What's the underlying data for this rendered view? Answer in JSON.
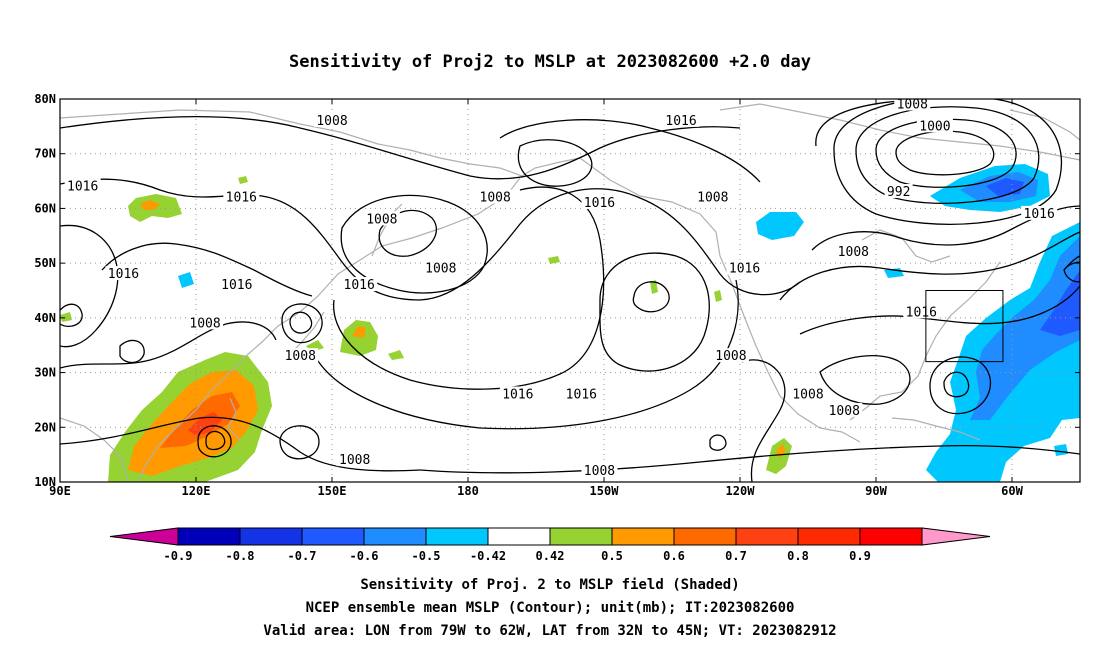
{
  "title": "Sensitivity of Proj2 to MSLP at 2023082600 +2.0 day",
  "map": {
    "lon_ticks": [
      "90E",
      "120E",
      "150E",
      "180",
      "150W",
      "120W",
      "90W",
      "60W"
    ],
    "lat_ticks": [
      "80N",
      "70N",
      "60N",
      "50N",
      "40N",
      "30N",
      "20N",
      "10N"
    ],
    "lon_range": [
      90,
      315
    ],
    "lat_range": [
      10,
      80
    ],
    "grid": "dotted",
    "valid_box": {
      "lon": [
        -79,
        -62
      ],
      "lat": [
        32,
        45
      ]
    }
  },
  "contour_labels": [
    {
      "text": "1008",
      "lon": 150,
      "lat": 76
    },
    {
      "text": "1016",
      "lon": 95,
      "lat": 64
    },
    {
      "text": "1016",
      "lon": 130,
      "lat": 62
    },
    {
      "text": "1016",
      "lon": 104,
      "lat": 48
    },
    {
      "text": "1016",
      "lon": 129,
      "lat": 46
    },
    {
      "text": "1008",
      "lon": 122,
      "lat": 39
    },
    {
      "text": "1008",
      "lon": 143,
      "lat": 33
    },
    {
      "text": "1008",
      "lon": 161,
      "lat": 58
    },
    {
      "text": "1008",
      "lon": 174,
      "lat": 49
    },
    {
      "text": "1016",
      "lon": 156,
      "lat": 46
    },
    {
      "text": "1008",
      "lon": 186,
      "lat": 62
    },
    {
      "text": "1016",
      "lon": 209,
      "lat": 61
    },
    {
      "text": "1016",
      "lon": 227,
      "lat": 76
    },
    {
      "text": "1008",
      "lon": 234,
      "lat": 62
    },
    {
      "text": "1008",
      "lon": 278,
      "lat": 79
    },
    {
      "text": "1000",
      "lon": 283,
      "lat": 75
    },
    {
      "text": "992",
      "lon": 275,
      "lat": 63
    },
    {
      "text": "1016",
      "lon": 306,
      "lat": 59
    },
    {
      "text": "1008",
      "lon": 265,
      "lat": 52
    },
    {
      "text": "1016",
      "lon": 241,
      "lat": 49
    },
    {
      "text": "1016",
      "lon": 280,
      "lat": 41
    },
    {
      "text": "1008",
      "lon": 238,
      "lat": 33
    },
    {
      "text": "1008",
      "lon": 255,
      "lat": 26
    },
    {
      "text": "1008",
      "lon": 263,
      "lat": 23
    },
    {
      "text": "1016",
      "lon": 191,
      "lat": 26
    },
    {
      "text": "1016",
      "lon": 205,
      "lat": 26
    },
    {
      "text": "1008",
      "lon": 155,
      "lat": 14
    },
    {
      "text": "1008",
      "lon": 209,
      "lat": 12
    }
  ],
  "sensitivity_colors": {
    "neg_09": "#cc0099",
    "neg_08": "#0000bb",
    "neg_07": "#1433e6",
    "neg_06": "#1e5aff",
    "neg_05": "#1f8cff",
    "neg_042": "#00c8ff",
    "zero": "#ffffff",
    "pos_042": "#96d232",
    "pos_05": "#ff9a00",
    "pos_06": "#ff6a00",
    "pos_07": "#ff4010",
    "pos_08": "#ff2a00",
    "pos_09": "#ff0000",
    "over": "#ff99cc"
  },
  "colorbar": {
    "labels": [
      "-0.9",
      "-0.8",
      "-0.7",
      "-0.6",
      "-0.5",
      "-0.42",
      "0.42",
      "0.5",
      "0.6",
      "0.7",
      "0.8",
      "0.9"
    ],
    "colors": [
      "#cc0099",
      "#0000bb",
      "#1433e6",
      "#1e5aff",
      "#1f8cff",
      "#00c8ff",
      "#ffffff",
      "#96d232",
      "#ff9a00",
      "#ff6a00",
      "#ff4010",
      "#ff2a00",
      "#ff0000",
      "#ff99cc"
    ]
  },
  "captions": [
    "Sensitivity of Proj. 2 to MSLP field (Shaded)",
    "NCEP ensemble mean MSLP (Contour); unit(mb); IT:2023082600",
    "Valid area: LON from 79W to 62W, LAT from 32N to 45N; VT: 2023082912"
  ]
}
